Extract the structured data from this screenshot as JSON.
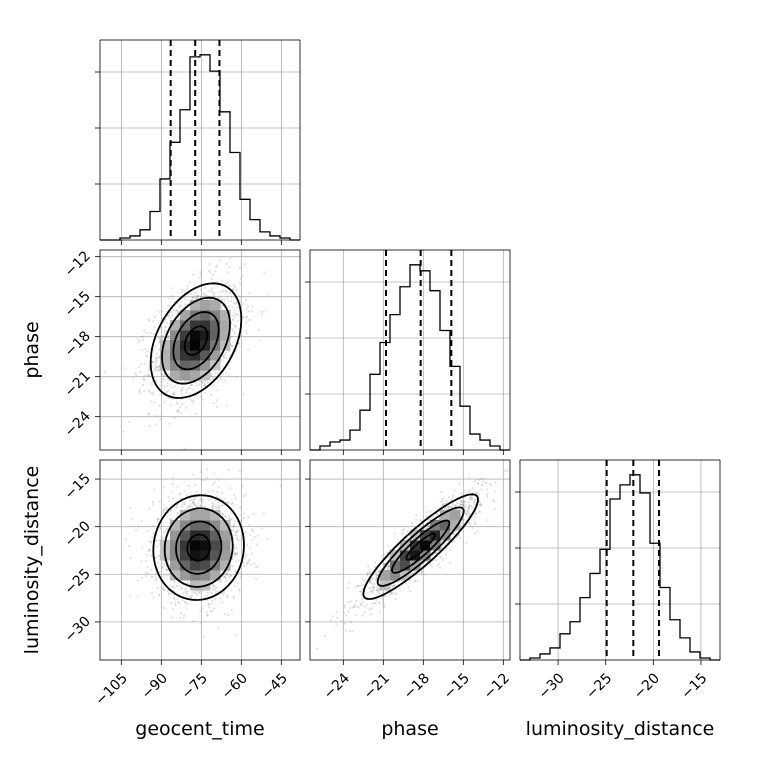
{
  "chart_data": {
    "type": "corner",
    "parameters": [
      "geocent_time",
      "phase",
      "luminosity_distance"
    ],
    "axes": [
      {
        "name": "geocent_time",
        "label": "geocent_time",
        "range": [
          -113,
          -38
        ],
        "ticks": [
          -105,
          -90,
          -75,
          -60,
          -45
        ]
      },
      {
        "name": "phase",
        "label": "phase",
        "range": [
          -26.5,
          -11.5
        ],
        "ticks": [
          -24,
          -21,
          -18,
          -15,
          -12
        ]
      },
      {
        "name": "luminosity_distance",
        "label": "luminosity_distance",
        "range": [
          -34,
          -13
        ],
        "ticks": [
          -30,
          -25,
          -20,
          -15
        ]
      }
    ],
    "histograms": [
      {
        "parameter": "geocent_time",
        "bin_edges": [
          -113,
          -109.25,
          -105.5,
          -101.75,
          -98,
          -94.25,
          -90.5,
          -86.75,
          -83,
          -79.25,
          -75.5,
          -71.75,
          -68,
          -64.25,
          -60.5,
          -56.75,
          -53,
          -49.25,
          -45.5,
          -41.75,
          -38
        ],
        "counts": [
          0.0,
          0.0,
          0.01,
          0.02,
          0.05,
          0.14,
          0.3,
          0.48,
          0.64,
          0.9,
          0.91,
          0.83,
          0.63,
          0.43,
          0.2,
          0.1,
          0.04,
          0.02,
          0.01,
          0.0
        ],
        "quantiles": [
          -86.5,
          -77.3,
          -68.2
        ]
      },
      {
        "parameter": "phase",
        "bin_edges": [
          -26.5,
          -25.75,
          -25,
          -24.25,
          -23.5,
          -22.75,
          -22,
          -21.25,
          -20.5,
          -19.75,
          -19,
          -18.25,
          -17.5,
          -16.75,
          -16,
          -15.25,
          -14.5,
          -13.75,
          -13,
          -12.25,
          -11.5
        ],
        "counts": [
          0.0,
          0.02,
          0.04,
          0.05,
          0.1,
          0.2,
          0.38,
          0.54,
          0.68,
          0.82,
          0.93,
          0.9,
          0.8,
          0.6,
          0.42,
          0.22,
          0.08,
          0.05,
          0.02,
          0.0
        ],
        "quantiles": [
          -20.8,
          -18.2,
          -15.9
        ]
      },
      {
        "parameter": "luminosity_distance",
        "bin_edges": [
          -34,
          -32.95,
          -31.9,
          -30.85,
          -29.8,
          -28.75,
          -27.7,
          -26.65,
          -25.6,
          -24.55,
          -23.5,
          -22.45,
          -21.4,
          -20.35,
          -19.3,
          -18.25,
          -17.2,
          -16.15,
          -15.1,
          -14.05,
          -13
        ],
        "counts": [
          0.0,
          0.01,
          0.03,
          0.06,
          0.13,
          0.19,
          0.31,
          0.43,
          0.55,
          0.8,
          0.87,
          0.92,
          0.83,
          0.58,
          0.36,
          0.2,
          0.11,
          0.04,
          0.01,
          0.0
        ],
        "quantiles": [
          -24.9,
          -22.1,
          -19.4
        ]
      }
    ],
    "scatter_panels": [
      {
        "x": "geocent_time",
        "y": "phase",
        "center": [
          -77,
          -18.3
        ],
        "sd": [
          8.5,
          2.15
        ],
        "corr": 0.38
      },
      {
        "x": "geocent_time",
        "y": "luminosity_distance",
        "center": [
          -76,
          -22.2
        ],
        "sd": [
          8.5,
          2.75
        ],
        "corr": 0.05
      },
      {
        "x": "phase",
        "y": "luminosity_distance",
        "center": [
          -18.2,
          -22.1
        ],
        "sd": [
          2.15,
          2.75
        ],
        "corr": 0.9
      }
    ],
    "contour_levels_sigma": [
      0.5,
      1.0,
      1.5,
      2.0
    ],
    "grid": true
  }
}
